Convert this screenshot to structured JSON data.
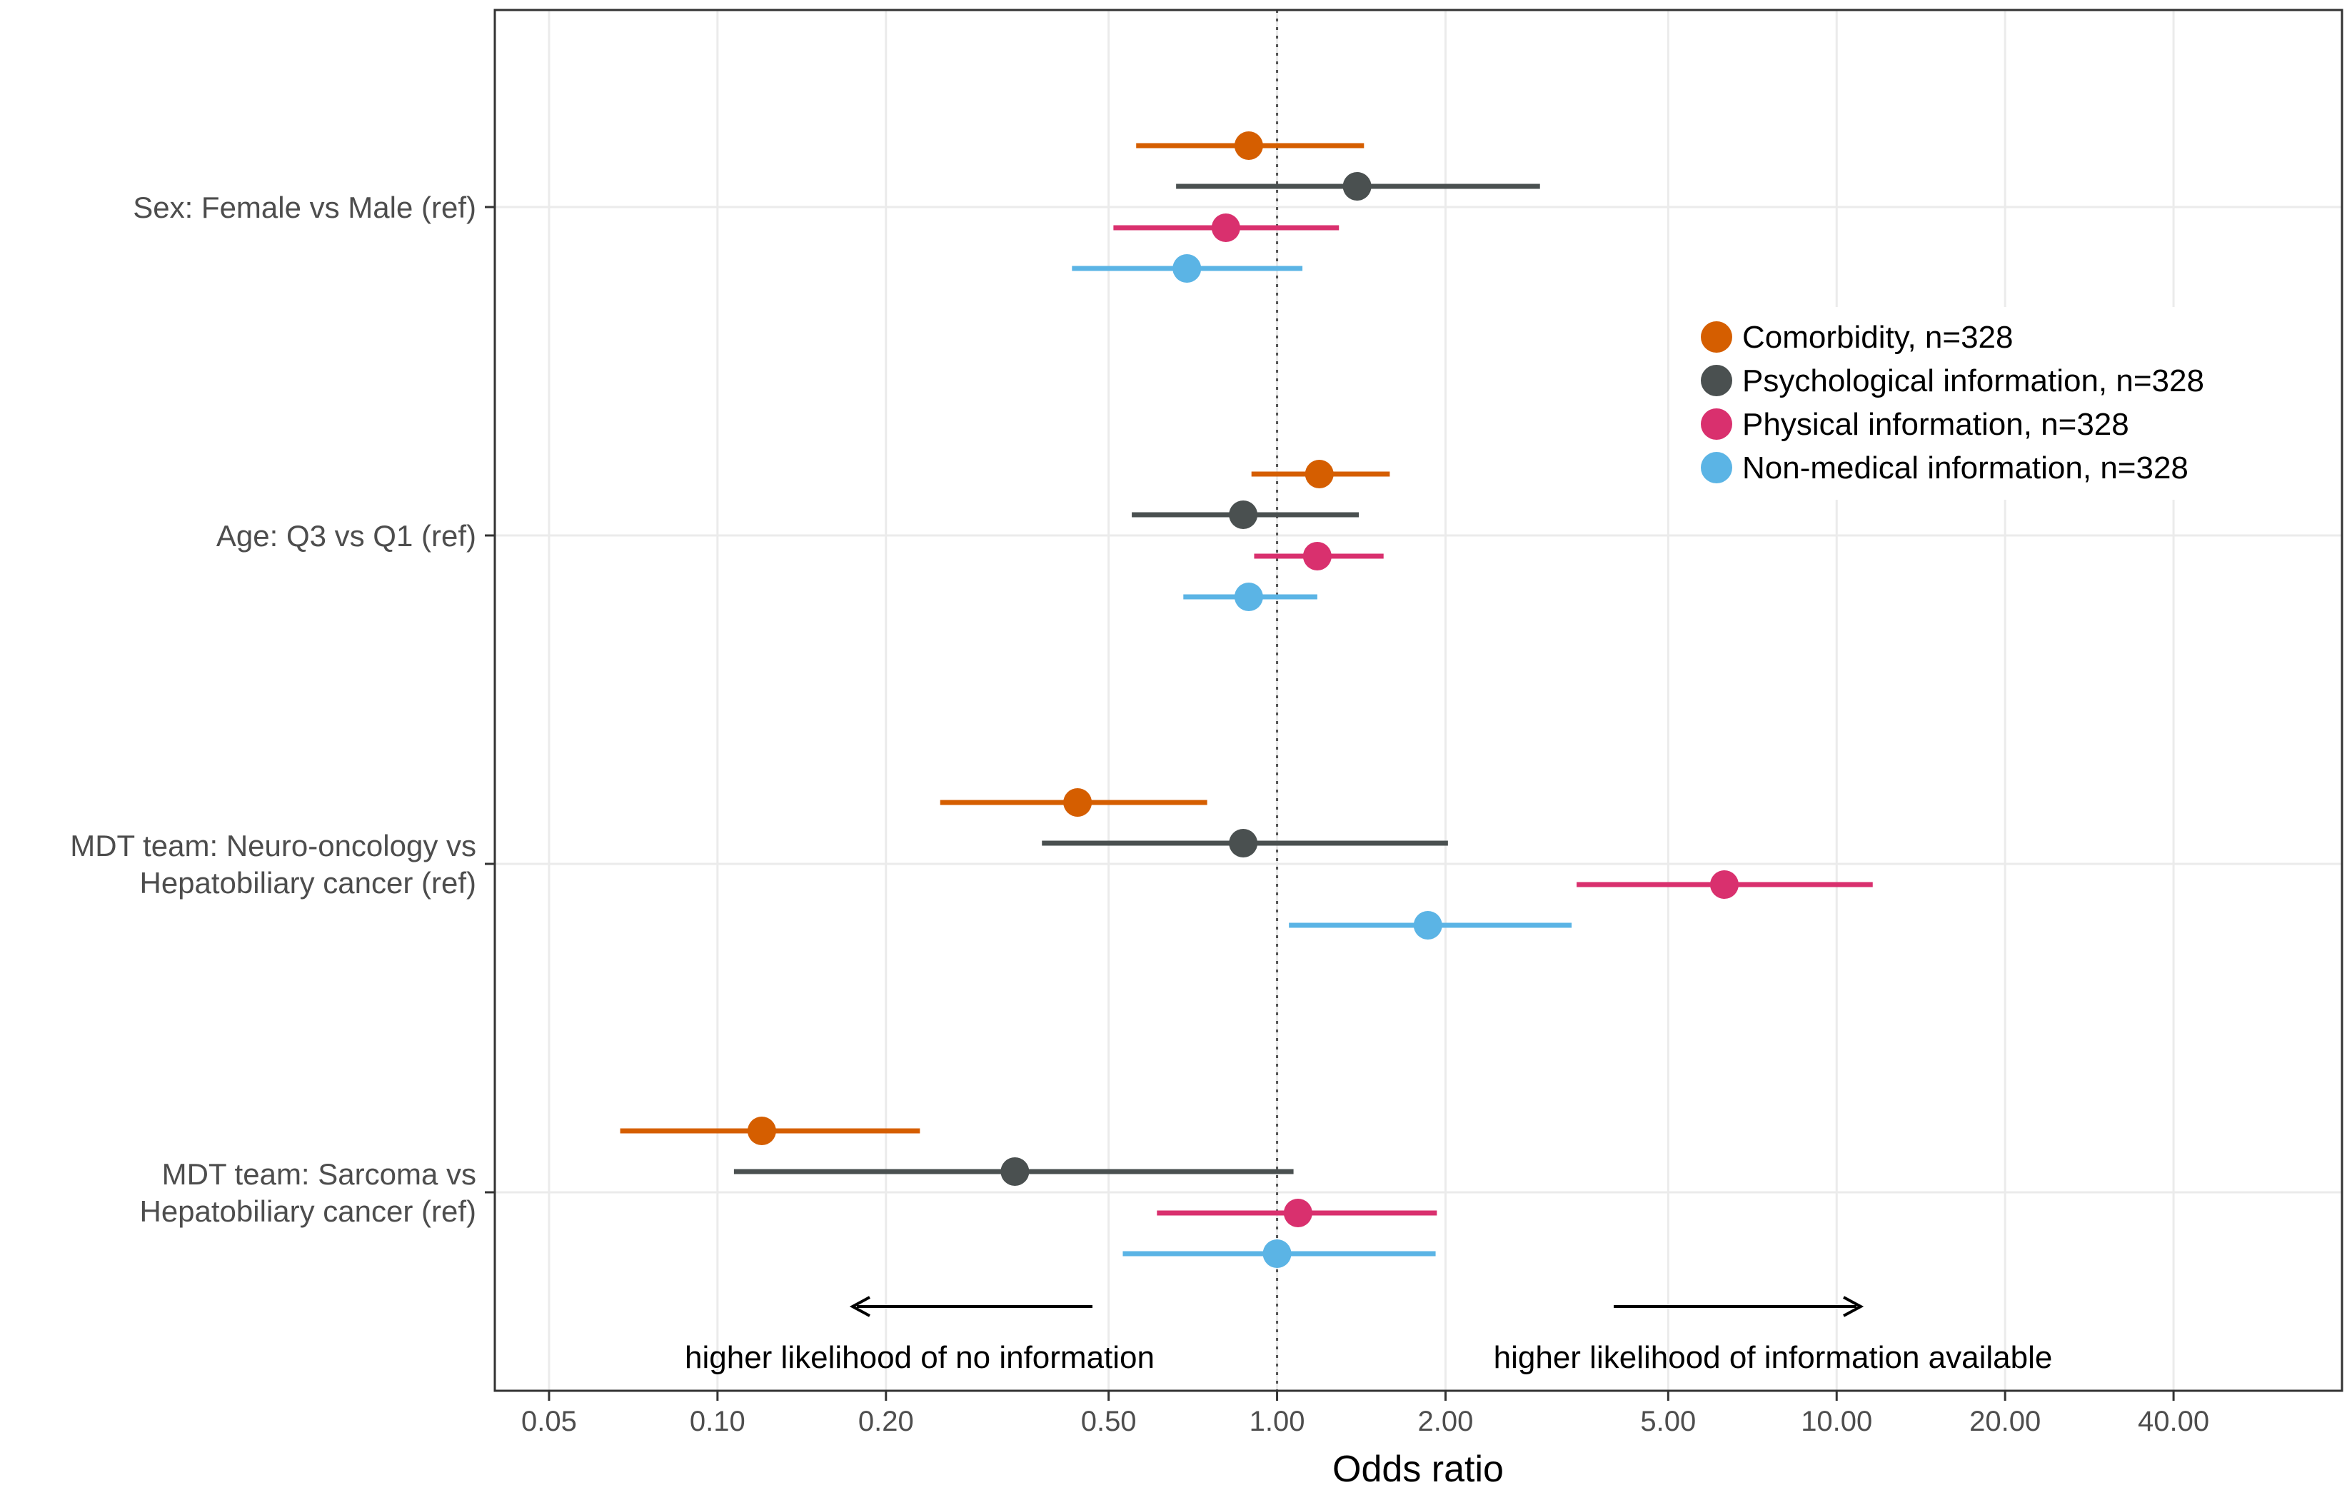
{
  "chart_data": {
    "type": "forest",
    "xlabel": "Odds ratio",
    "xscale": "log",
    "xlim": [
      0.04,
      80
    ],
    "reference_line": 1.0,
    "x_ticks": [
      {
        "value": 0.05,
        "label": "0.05"
      },
      {
        "value": 0.1,
        "label": "0.10"
      },
      {
        "value": 0.2,
        "label": "0.20"
      },
      {
        "value": 0.5,
        "label": "0.50"
      },
      {
        "value": 1.0,
        "label": "1.00"
      },
      {
        "value": 2.0,
        "label": "2.00"
      },
      {
        "value": 5.0,
        "label": "5.00"
      },
      {
        "value": 10.0,
        "label": "10.00"
      },
      {
        "value": 20.0,
        "label": "20.00"
      },
      {
        "value": 40.0,
        "label": "40.00"
      }
    ],
    "categories": [
      {
        "lines": [
          "Sex: Female vs Male (ref)"
        ]
      },
      {
        "lines": [
          "Age: Q3 vs Q1 (ref)"
        ]
      },
      {
        "lines": [
          "MDT team: Neuro-oncology vs",
          "Hepatobiliary cancer (ref)"
        ]
      },
      {
        "lines": [
          "MDT team: Sarcoma vs",
          "Hepatobiliary cancer (ref)"
        ]
      }
    ],
    "series": [
      {
        "name": "Comorbidity, n=328",
        "color": "#d55e00",
        "points": [
          {
            "or": 0.89,
            "lo": 0.56,
            "hi": 1.43
          },
          {
            "or": 1.19,
            "lo": 0.9,
            "hi": 1.59
          },
          {
            "or": 0.44,
            "lo": 0.25,
            "hi": 0.75
          },
          {
            "or": 0.12,
            "lo": 0.067,
            "hi": 0.23
          }
        ]
      },
      {
        "name": "Psychological information, n=328",
        "color": "#4a5050",
        "points": [
          {
            "or": 1.39,
            "lo": 0.66,
            "hi": 2.95
          },
          {
            "or": 0.87,
            "lo": 0.55,
            "hi": 1.4
          },
          {
            "or": 0.87,
            "lo": 0.38,
            "hi": 2.02
          },
          {
            "or": 0.34,
            "lo": 0.107,
            "hi": 1.07
          }
        ]
      },
      {
        "name": "Physical information, n=328",
        "color": "#d9306e",
        "points": [
          {
            "or": 0.81,
            "lo": 0.51,
            "hi": 1.29
          },
          {
            "or": 1.18,
            "lo": 0.91,
            "hi": 1.55
          },
          {
            "or": 6.3,
            "lo": 3.43,
            "hi": 11.6
          },
          {
            "or": 1.09,
            "lo": 0.61,
            "hi": 1.93
          }
        ]
      },
      {
        "name": "Non-medical information, n=328",
        "color": "#5bb4e5",
        "points": [
          {
            "or": 0.69,
            "lo": 0.43,
            "hi": 1.11
          },
          {
            "or": 0.89,
            "lo": 0.68,
            "hi": 1.18
          },
          {
            "or": 1.86,
            "lo": 1.05,
            "hi": 3.36
          },
          {
            "or": 1.0,
            "lo": 0.53,
            "hi": 1.92
          }
        ]
      }
    ],
    "annotations": {
      "left": "higher likelihood of no information",
      "right": "higher likelihood of information available"
    },
    "legend_position": "top-right"
  }
}
